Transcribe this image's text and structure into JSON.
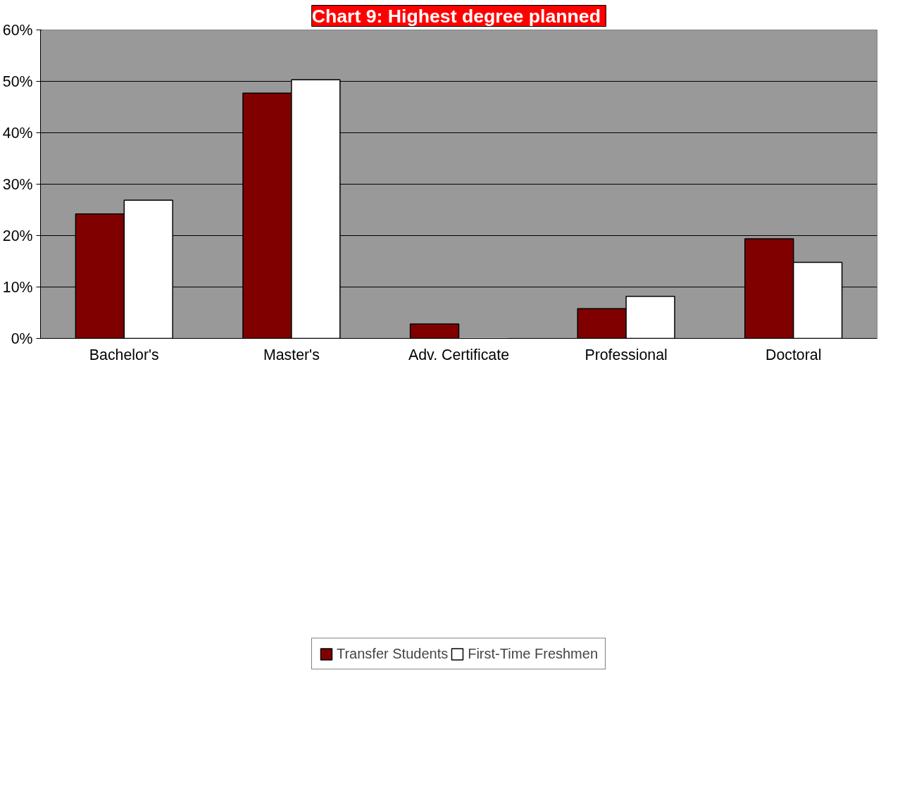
{
  "chart_data": {
    "type": "bar",
    "title": "Chart 9:  Highest degree planned",
    "categories": [
      "Bachelor's",
      "Master's",
      "Adv. Certificate",
      "Professional",
      "Doctoral"
    ],
    "series": [
      {
        "name": "Transfer Students",
        "color": "#800000",
        "values": [
          24.2,
          47.7,
          2.8,
          5.8,
          19.4
        ]
      },
      {
        "name": "First-Time Freshmen",
        "color": "#ffffff",
        "values": [
          26.9,
          50.3,
          0,
          8.2,
          14.8
        ]
      }
    ],
    "ylim": [
      0,
      60
    ],
    "yticks": [
      {
        "value": 0,
        "label": "0%"
      },
      {
        "value": 10,
        "label": "10%"
      },
      {
        "value": 20,
        "label": "20%"
      },
      {
        "value": 30,
        "label": "30%"
      },
      {
        "value": 40,
        "label": "40%"
      },
      {
        "value": 50,
        "label": "50%"
      },
      {
        "value": 60,
        "label": "60%"
      }
    ],
    "grid": "y",
    "legend": "bottom"
  }
}
